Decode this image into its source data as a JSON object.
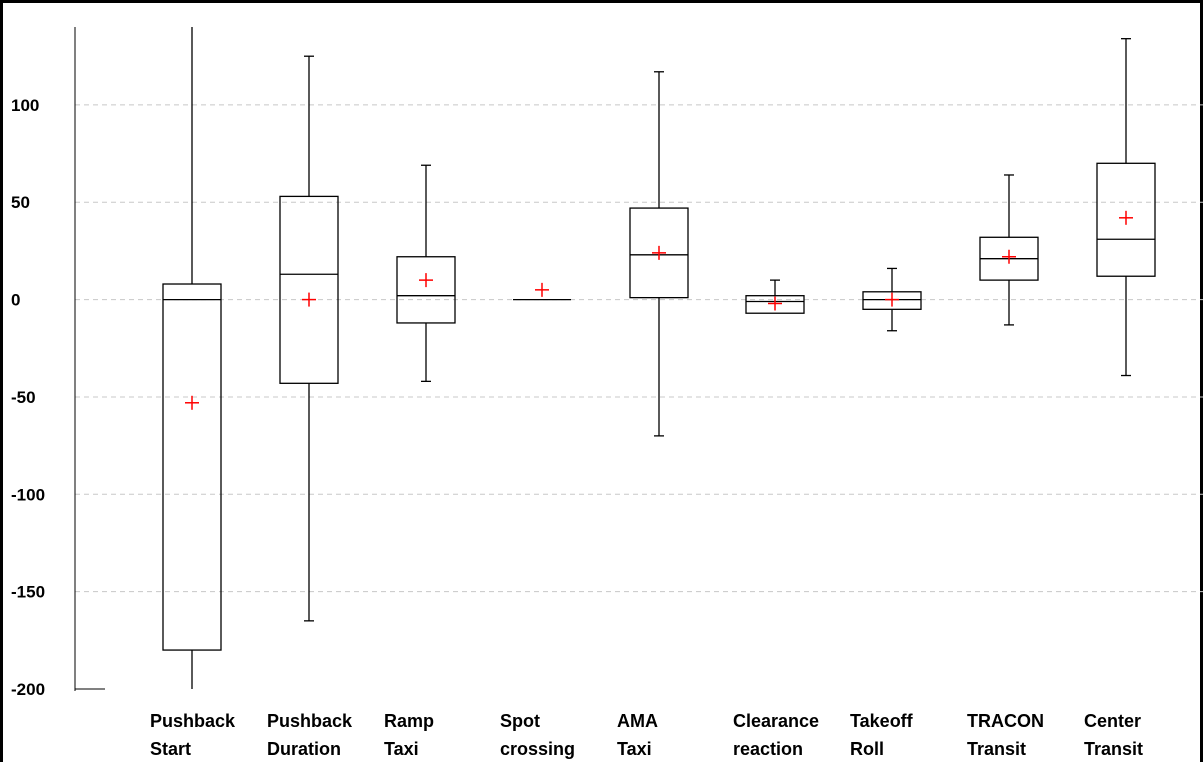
{
  "chart_data": {
    "type": "box",
    "title": "",
    "xlabel": "",
    "ylabel": "",
    "ylim": [
      -200,
      140
    ],
    "y_ticks": [
      100,
      50,
      0,
      -50,
      -100,
      -150,
      -200
    ],
    "y_tick_labels": [
      "100",
      "50",
      "0",
      "-50",
      "-100",
      "-150",
      "-200"
    ],
    "grid": "horizontal dashed",
    "colors": {
      "box": "#000000",
      "mean_marker": "#ff0000",
      "grid": "#c8c8c8"
    },
    "categories": [
      [
        "Pushback",
        "Start"
      ],
      [
        "Pushback",
        "Duration"
      ],
      [
        "Ramp",
        "Taxi"
      ],
      [
        "Spot",
        "crossing"
      ],
      [
        "AMA",
        "Taxi"
      ],
      [
        "Clearance",
        "reaction"
      ],
      [
        "Takeoff",
        "Roll"
      ],
      [
        "TRACON",
        "Transit"
      ],
      [
        "Center",
        "Transit"
      ]
    ],
    "boxes": [
      {
        "min": -200,
        "q1": -180,
        "median": 0,
        "q3": 8,
        "max": 140,
        "mean": -53
      },
      {
        "min": -165,
        "q1": -43,
        "median": 13,
        "q3": 53,
        "max": 125,
        "mean": 0
      },
      {
        "min": -42,
        "q1": -12,
        "median": 2,
        "q3": 22,
        "max": 69,
        "mean": 10
      },
      {
        "min": 0,
        "q1": 0,
        "median": 0,
        "q3": 0,
        "max": 0,
        "mean": 5
      },
      {
        "min": -70,
        "q1": 1,
        "median": 23,
        "q3": 47,
        "max": 117,
        "mean": 24
      },
      {
        "min": -7,
        "q1": -7,
        "median": -1,
        "q3": 2,
        "max": 10,
        "mean": -2
      },
      {
        "min": -16,
        "q1": -5,
        "median": 0,
        "q3": 4,
        "max": 16,
        "mean": 0
      },
      {
        "min": -13,
        "q1": 10,
        "median": 21,
        "q3": 32,
        "max": 64,
        "mean": 22
      },
      {
        "min": -39,
        "q1": 12,
        "median": 31,
        "q3": 70,
        "max": 134,
        "mean": 42
      }
    ]
  }
}
